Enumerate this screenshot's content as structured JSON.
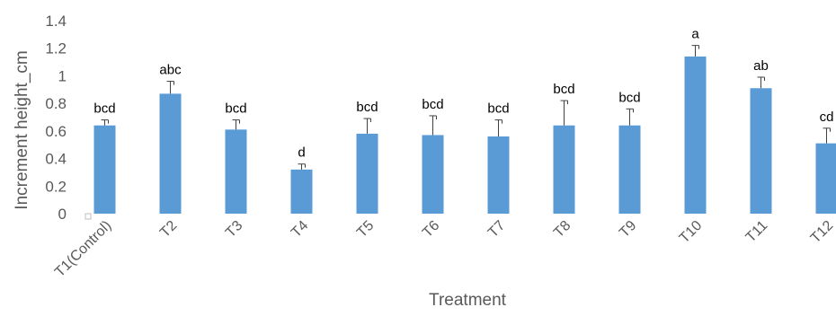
{
  "chart_data": {
    "type": "bar",
    "title": "",
    "xlabel": "Treatment",
    "ylabel": "Increment height_cm",
    "ylim": [
      0,
      1.4
    ],
    "yticks": [
      "0",
      "0.2",
      "0.4",
      "0.6",
      "0.8",
      "1",
      "1.2",
      "1.4"
    ],
    "grid": false,
    "categories": [
      "T1(Control)",
      "T2",
      "T3",
      "T4",
      "T5",
      "T6",
      "T7",
      "T8",
      "T9",
      "T10",
      "T11",
      "T12"
    ],
    "values": [
      0.64,
      0.87,
      0.61,
      0.32,
      0.58,
      0.57,
      0.56,
      0.64,
      0.64,
      1.14,
      0.91,
      0.51
    ],
    "error_tops": [
      0.68,
      0.96,
      0.68,
      0.36,
      0.69,
      0.71,
      0.68,
      0.82,
      0.76,
      1.22,
      0.99,
      0.62
    ],
    "letters": [
      "bcd",
      "abc",
      "bcd",
      "d",
      "bcd",
      "bcd",
      "bcd",
      "bcd",
      "bcd",
      "a",
      "ab",
      "cd"
    ],
    "bar_color": "#5b9bd5"
  }
}
